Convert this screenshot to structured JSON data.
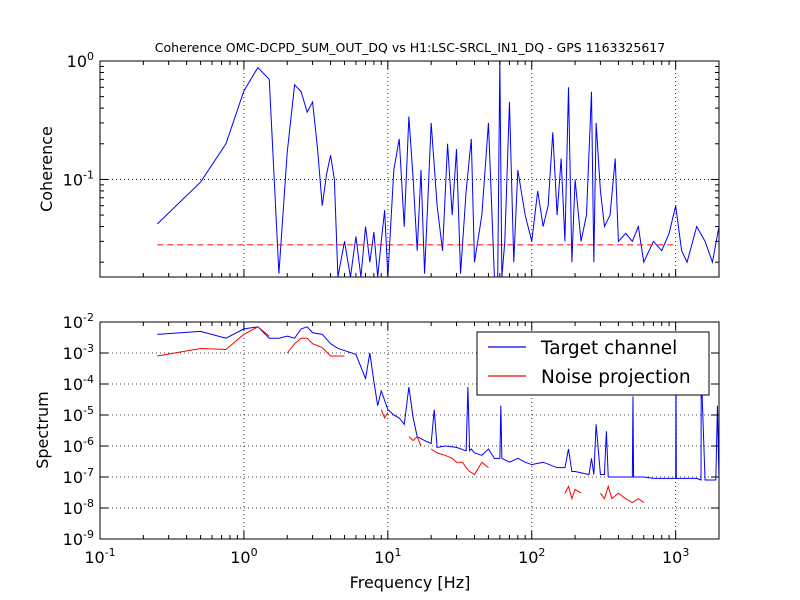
{
  "chart_data": [
    {
      "type": "line",
      "title": "Coherence OMC-DCPD_SUM_OUT_DQ vs H1:LSC-SRCL_IN1_DQ - GPS 1163325617",
      "xlabel": "",
      "ylabel": "Coherence",
      "xscale": "log",
      "yscale": "log",
      "xlim": [
        0.1,
        2000
      ],
      "ylim": [
        0.015,
        1
      ],
      "grid": true,
      "y_ticks": [
        {
          "value": 1,
          "base": "10",
          "exp": "0"
        },
        {
          "value": 0.1,
          "base": "10",
          "exp": "-1"
        }
      ],
      "series": [
        {
          "color": "#0000ff",
          "x": [
            0.25,
            0.5,
            0.75,
            1.0,
            1.25,
            1.5,
            1.75,
            2.0,
            2.25,
            2.5,
            2.75,
            3.0,
            3.25,
            3.5,
            3.75,
            4.0,
            4.25,
            4.5,
            5,
            5.5,
            6,
            6.5,
            7,
            7.5,
            8,
            8.5,
            9,
            9.5,
            10,
            11,
            12,
            13,
            14,
            15,
            16,
            17,
            18,
            19,
            20,
            22,
            24,
            26,
            28,
            30,
            32,
            35,
            38,
            40,
            45,
            50,
            55,
            58,
            60,
            62,
            65,
            70,
            75,
            80,
            90,
            100,
            110,
            120,
            130,
            140,
            150,
            160,
            170,
            180,
            190,
            200,
            220,
            240,
            260,
            270,
            280,
            300,
            320,
            350,
            380,
            400,
            450,
            500,
            550,
            600,
            700,
            800,
            900,
            1000,
            1100,
            1200,
            1400,
            1600,
            1800,
            2000
          ],
          "y": [
            0.042,
            0.095,
            0.2,
            0.56,
            0.88,
            0.7,
            0.016,
            0.17,
            0.63,
            0.55,
            0.37,
            0.45,
            0.18,
            0.06,
            0.11,
            0.16,
            0.1,
            0.015,
            0.03,
            0.015,
            0.033,
            0.015,
            0.04,
            0.02,
            0.036,
            0.015,
            0.03,
            0.055,
            0.015,
            0.12,
            0.22,
            0.04,
            0.34,
            0.1,
            0.025,
            0.12,
            0.016,
            0.07,
            0.3,
            0.06,
            0.025,
            0.2,
            0.05,
            0.18,
            0.016,
            0.08,
            0.22,
            0.02,
            0.05,
            0.3,
            0.015,
            0.015,
            1.0,
            0.015,
            0.03,
            0.45,
            0.02,
            0.12,
            0.05,
            0.03,
            0.08,
            0.04,
            0.06,
            0.25,
            0.05,
            0.15,
            0.03,
            0.6,
            0.02,
            0.1,
            0.03,
            0.05,
            0.55,
            0.02,
            0.3,
            0.08,
            0.04,
            0.05,
            0.15,
            0.03,
            0.035,
            0.03,
            0.04,
            0.02,
            0.03,
            0.025,
            0.035,
            0.06,
            0.025,
            0.02,
            0.04,
            0.03,
            0.02,
            0.04
          ]
        },
        {
          "color": "#ff0000",
          "dashed": true,
          "x": [
            0.25,
            1000
          ],
          "y": [
            0.028,
            0.028
          ]
        }
      ]
    },
    {
      "type": "line",
      "title": "",
      "xlabel": "Frequency [Hz]",
      "ylabel": "Spectrum",
      "xscale": "log",
      "yscale": "log",
      "xlim": [
        0.1,
        2000
      ],
      "ylim": [
        1e-09,
        0.01
      ],
      "grid": true,
      "legend_position": "top-right",
      "x_ticks": [
        {
          "value": 0.1,
          "base": "10",
          "exp": "-1"
        },
        {
          "value": 1,
          "base": "10",
          "exp": "0"
        },
        {
          "value": 10,
          "base": "10",
          "exp": "1"
        },
        {
          "value": 100,
          "base": "10",
          "exp": "2"
        },
        {
          "value": 1000,
          "base": "10",
          "exp": "3"
        }
      ],
      "y_ticks": [
        {
          "value": 0.01,
          "base": "10",
          "exp": "-2"
        },
        {
          "value": 0.001,
          "base": "10",
          "exp": "-3"
        },
        {
          "value": 0.0001,
          "base": "10",
          "exp": "-4"
        },
        {
          "value": 1e-05,
          "base": "10",
          "exp": "-5"
        },
        {
          "value": 1e-06,
          "base": "10",
          "exp": "-6"
        },
        {
          "value": 1e-07,
          "base": "10",
          "exp": "-7"
        },
        {
          "value": 1e-08,
          "base": "10",
          "exp": "-8"
        },
        {
          "value": 1e-09,
          "base": "10",
          "exp": "-9"
        }
      ],
      "series": [
        {
          "name": "Target channel",
          "color": "#0000ff",
          "x": [
            0.25,
            0.5,
            0.75,
            1.0,
            1.25,
            1.5,
            1.75,
            2.0,
            2.25,
            2.5,
            2.75,
            3.0,
            3.5,
            4.0,
            4.5,
            5,
            6,
            7,
            7.5,
            8,
            8.5,
            9,
            10,
            11,
            12,
            13,
            14,
            15,
            16,
            18,
            20,
            21,
            22,
            25,
            30,
            35,
            36,
            37,
            38,
            40,
            45,
            50,
            55,
            60,
            61,
            62,
            70,
            80,
            90,
            100,
            120,
            150,
            170,
            180,
            190,
            200,
            250,
            260,
            270,
            280,
            300,
            320,
            330,
            340,
            350,
            400,
            450,
            500,
            505,
            510,
            600,
            700,
            800,
            900,
            1000,
            1005,
            1010,
            1100,
            1200,
            1400,
            1500,
            1505,
            1600,
            1800,
            1900,
            1950,
            2000
          ],
          "y": [
            0.004,
            0.005,
            0.003,
            0.006,
            0.007,
            0.003,
            0.003,
            0.0035,
            0.003,
            0.006,
            0.007,
            0.0045,
            0.004,
            0.002,
            0.0014,
            0.0012,
            0.0009,
            0.00015,
            0.001,
            0.00012,
            2e-05,
            6e-05,
            1.5e-05,
            1e-05,
            8e-06,
            5e-06,
            8e-05,
            8e-06,
            2e-06,
            1.5e-06,
            1.2e-06,
            1.5e-05,
            9e-07,
            1e-06,
            9e-07,
            7e-07,
            8e-05,
            7e-07,
            8e-07,
            6e-07,
            5e-07,
            8e-07,
            4e-07,
            4e-07,
            2e-05,
            4e-07,
            3e-07,
            4e-07,
            3e-07,
            2.5e-07,
            3e-07,
            2e-07,
            2e-07,
            8e-07,
            1.5e-07,
            1.5e-07,
            1.2e-07,
            4e-07,
            1.2e-07,
            5e-06,
            1.2e-07,
            1.2e-07,
            3e-06,
            1e-07,
            1e-07,
            1e-07,
            1e-07,
            1e-07,
            4e-05,
            1e-07,
            1e-07,
            9e-08,
            9e-08,
            9e-08,
            9e-08,
            0.0004,
            9e-08,
            9e-08,
            9e-08,
            9e-08,
            8e-08,
            0.0003,
            8e-08,
            8e-08,
            8e-08,
            2e-05,
            8e-08
          ]
        },
        {
          "name": "Noise projection",
          "color": "#ff0000",
          "x": [
            0.25,
            0.5,
            0.75,
            1.0,
            1.25,
            1.5,
            1.75,
            2.0,
            2.25,
            2.5,
            2.75,
            3.0,
            3.5,
            4.0,
            4.5,
            5,
            null,
            9,
            9.5,
            10,
            null,
            14,
            15,
            16,
            17,
            null,
            20,
            22,
            25,
            28,
            30,
            33,
            35,
            37,
            40,
            45,
            50,
            null,
            170,
            180,
            190,
            200,
            220,
            null,
            300,
            320,
            340,
            360,
            400,
            450,
            500,
            550,
            600
          ],
          "y": [
            0.0008,
            0.0014,
            0.0013,
            0.004,
            0.007,
            0.0035,
            null,
            0.001,
            0.002,
            0.003,
            0.003,
            0.002,
            0.0015,
            0.0008,
            0.0008,
            0.0008,
            null,
            1.5e-05,
            8e-06,
            1.2e-05,
            null,
            2e-06,
            1.5e-06,
            2e-06,
            1e-06,
            null,
            8e-07,
            6e-07,
            5e-07,
            4e-07,
            3e-07,
            3e-07,
            2e-07,
            1.5e-07,
            1.2e-07,
            3e-07,
            2e-07,
            null,
            3e-08,
            5e-08,
            2e-08,
            4e-08,
            3e-08,
            null,
            3e-08,
            2e-08,
            5e-08,
            2e-08,
            3e-08,
            2e-08,
            1.5e-08,
            2e-08,
            1.5e-08
          ]
        }
      ]
    }
  ]
}
